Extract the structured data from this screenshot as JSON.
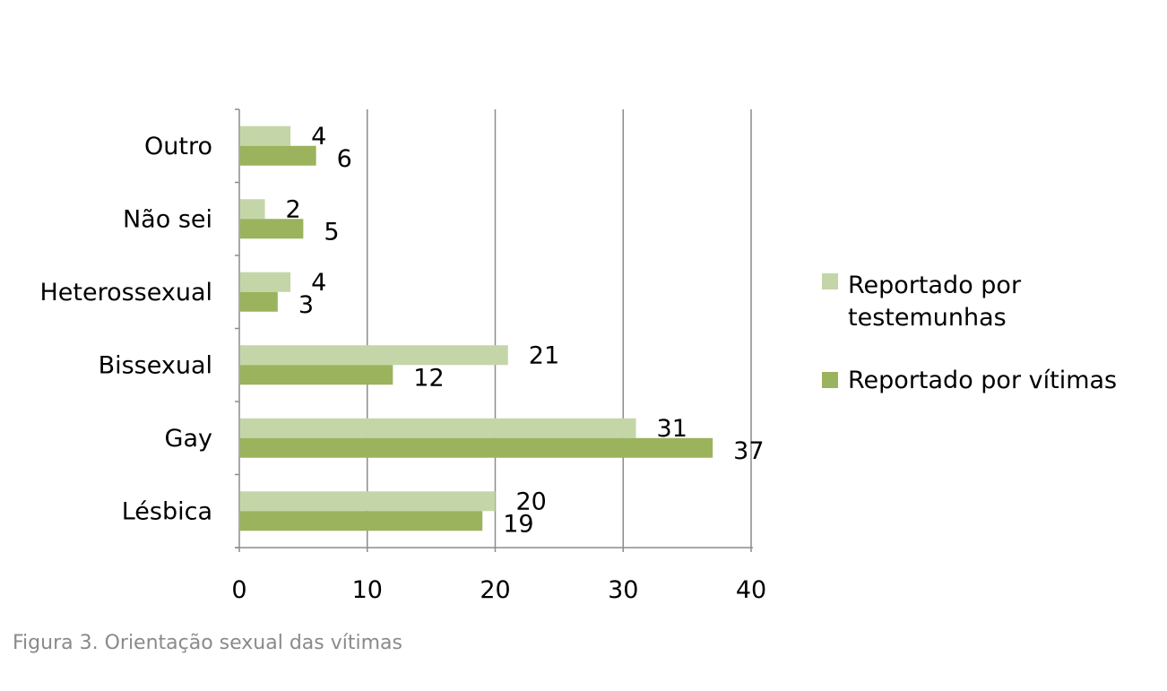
{
  "chart_data": {
    "type": "bar",
    "orientation": "horizontal",
    "categories": [
      "Lésbica",
      "Gay",
      "Bissexual",
      "Heterossexual",
      "Não sei",
      "Outro"
    ],
    "series": [
      {
        "name": "Reportado por testemunhas",
        "values": [
          20,
          31,
          21,
          4,
          2,
          4
        ],
        "color": "#c4d6a8"
      },
      {
        "name": "Reportado por vítimas",
        "values": [
          19,
          37,
          12,
          3,
          5,
          6
        ],
        "color": "#9bb35c"
      }
    ],
    "x_ticks": [
      "0",
      "10",
      "20",
      "30",
      "40"
    ],
    "xlim": [
      0,
      40
    ],
    "grid": true,
    "legend_position": "right",
    "legend_labels": {
      "testemunhas_line1": "Reportado por",
      "testemunhas_line2": "testemunhas",
      "vitimas": "Reportado por vítimas"
    }
  },
  "caption": "Figura 3. Orientação sexual das vítimas"
}
